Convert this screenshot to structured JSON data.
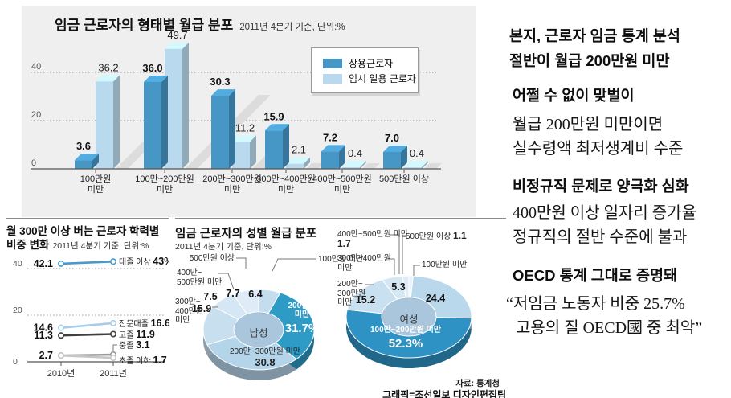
{
  "meta": {
    "source_left": "자료: 통계청",
    "source_right": "그래픽=조선일보 디자인편집팀"
  },
  "chart_data": [
    {
      "type": "bar",
      "title": "임금 근로자의 형태별 월급 분포",
      "subtitle": "2011년 4분기 기준, 단위:%",
      "categories": [
        "100만원 미만",
        "100만~200만원 미만",
        "200만~300만원 미만",
        "300만~400만원 미만",
        "400만~500만원 미만",
        "500만원 이상"
      ],
      "category_lines": [
        [
          "100만원",
          "미만"
        ],
        [
          "100만~200만원",
          "미만"
        ],
        [
          "200만~300만원",
          "미만"
        ],
        [
          "300만~400만원",
          "미만"
        ],
        [
          "400만~500만원",
          "미만"
        ],
        [
          "500만원 이상"
        ]
      ],
      "series": [
        {
          "name": "상용근로자",
          "color": "#4697c5",
          "values": [
            3.6,
            36.0,
            30.3,
            15.9,
            7.2,
            7.0
          ],
          "value_labels": [
            "3.6",
            "36.0",
            "30.3",
            "15.9",
            "7.2",
            "7.0"
          ]
        },
        {
          "name": "임시 일용 근로자",
          "color": "#b9daee",
          "values": [
            36.2,
            49.7,
            11.2,
            2.1,
            0.4,
            0.4
          ],
          "value_labels": [
            "36.2",
            "49.7",
            "11.2",
            "2.1",
            "0.4",
            "0.4"
          ]
        }
      ],
      "yticks": [
        0,
        20,
        40
      ],
      "ylim": [
        0,
        52
      ],
      "grid": "dotted",
      "legend_position": "top-right"
    },
    {
      "type": "line",
      "title": "월 300만 이상 버는 근로자 학력별 비중 변화",
      "title_lines": [
        "월 300만 이상 버는 근로자 학력별",
        "비중 변화"
      ],
      "subtitle": "2011년 4분기 기준, 단위:%",
      "x": [
        "2010년",
        "2011년"
      ],
      "series": [
        {
          "name": "대졸 이상",
          "color": "#4a99c8",
          "values": [
            42.1,
            43
          ],
          "left_label": "42.1",
          "right_value": "43%"
        },
        {
          "name": "전문대졸",
          "color": "#a5cde9",
          "values": [
            14.6,
            16.6
          ],
          "left_label": "14.6",
          "right_value": "16.6"
        },
        {
          "name": "고졸",
          "color": "#3f3f3f",
          "values": [
            11.3,
            11.9
          ],
          "left_label": "11.3",
          "right_value": "11.9"
        },
        {
          "name": "중졸",
          "color": "#9b9b9b",
          "values": [
            2.7,
            3.1
          ],
          "left_label": "",
          "right_value": "3.1"
        },
        {
          "name": "초졸 이하",
          "color": "#c6c6c6",
          "values": [
            2.7,
            1.7
          ],
          "left_label": "2.7",
          "right_value": "1.7"
        }
      ],
      "yticks": [
        0,
        20,
        40
      ]
    },
    {
      "type": "donut",
      "title": "임금 근로자의 성별 월급 분포",
      "subtitle": "2011년 4분기 기준, 단위:%",
      "center_label": "남성",
      "segments": [
        {
          "label": "100만원 미만",
          "value": 6.4,
          "color": "#c3ddef"
        },
        {
          "label": "100만~200만원 미만",
          "value": 31.7,
          "color": "#2e9ac6",
          "highlight": true
        },
        {
          "label": "200만~300만원 미만",
          "value": 30.8,
          "color": "#b4d4e9"
        },
        {
          "label": "300만~400만원 미만",
          "value": 15.9,
          "color": "#c8dff0"
        },
        {
          "label": "400만~500만원 미만",
          "value": 7.5,
          "color": "#d5e7f4"
        },
        {
          "label": "500만원 이상",
          "value": 7.7,
          "color": "#dfecf7"
        }
      ],
      "inside_labels": [
        "6.4",
        "31.7%",
        "30.8",
        "15.9",
        "7.5",
        "7.7"
      ],
      "highlight_name_lines": [
        "100만~",
        "200만원",
        "미만"
      ],
      "callouts": [
        {
          "lines": [
            "500만원 이상"
          ]
        },
        {
          "lines": [
            "400만~",
            "500만원 미만"
          ]
        },
        {
          "lines": [
            "300만~",
            "400만원",
            "미만"
          ]
        },
        {
          "lines": [
            "100만원 미만"
          ]
        }
      ]
    },
    {
      "type": "donut",
      "center_label": "여성",
      "segments": [
        {
          "label": "500만원 이상",
          "value": 1.1,
          "color": "#e9f2fa"
        },
        {
          "label": "100만원 미만",
          "value": 24.4,
          "color": "#b9d8ec"
        },
        {
          "label": "100만~200만원 미만",
          "value": 52.3,
          "color": "#2e93c4",
          "highlight": true
        },
        {
          "label": "200만~300만원 미만",
          "value": 15.2,
          "color": "#c9e0f0"
        },
        {
          "label": "300만~400만원 미만",
          "value": 5.3,
          "color": "#d6e7f4"
        },
        {
          "label": "400만~500만원 미만",
          "value": 1.7,
          "color": "#e0edf8"
        }
      ],
      "inside_labels": [
        "",
        "24.4",
        "52.3%",
        "15.2",
        "5.3",
        ""
      ],
      "highlight_name_lines": [
        "100만~200만원 미만"
      ],
      "callouts": [
        {
          "lines": [
            "400만~500만원 미만"
          ],
          "value": "1.7"
        },
        {
          "lines": [
            "500만원 이상"
          ],
          "value": "1.1"
        },
        {
          "lines": [
            "300만~400만원",
            "미만"
          ]
        },
        {
          "lines": [
            "100만원 미만"
          ]
        },
        {
          "lines": [
            "200만~",
            "300만원",
            "미만"
          ]
        }
      ]
    }
  ],
  "commentary": {
    "lines": [
      {
        "text": "본지, 근로자 임금 통계 분석",
        "style": "head"
      },
      {
        "text": "절반이 월급 200만원 미만",
        "style": "head"
      },
      {
        "text": "어쩔 수 없이 맞벌이",
        "style": "head"
      },
      {
        "text": "월급 200만원 미만이면",
        "style": "serif"
      },
      {
        "text": "실수령액 최저생계비 수준",
        "style": "serif"
      },
      {
        "text": "비정규직 문제로 양극화 심화",
        "style": "head"
      },
      {
        "text": "400만원 이상 일자리 증가율",
        "style": "serif"
      },
      {
        "text": "정규직의 절반 수준에 불과",
        "style": "serif"
      },
      {
        "text": "OECD 통계 그대로 증명돼",
        "style": "head"
      },
      {
        "text": "“저임금 노동자 비중 25.7%",
        "style": "serif"
      },
      {
        "text": "고용의 질 OECD國 중 최악”",
        "style": "serif"
      }
    ]
  }
}
